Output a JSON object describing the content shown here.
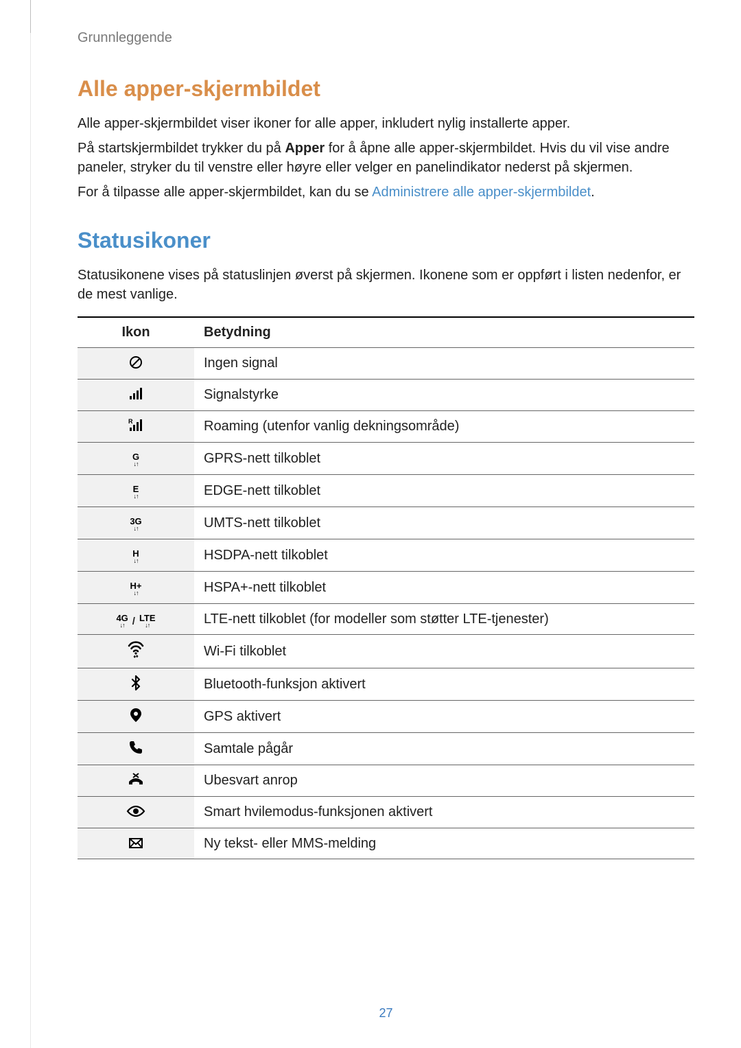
{
  "header": {
    "section": "Grunnleggende"
  },
  "s1": {
    "title": "Alle apper-skjermbildet",
    "p1": "Alle apper-skjermbildet viser ikoner for alle apper, inkludert nylig installerte apper.",
    "p2a": "På startskjermbildet trykker du på ",
    "p2b": "Apper",
    "p2c": " for å åpne alle apper-skjermbildet. Hvis du vil vise andre paneler, stryker du til venstre eller høyre eller velger en panelindikator nederst på skjermen.",
    "p3a": "For å tilpasse alle apper-skjermbildet, kan du se ",
    "p3link": "Administrere alle apper-skjermbildet",
    "p3b": "."
  },
  "s2": {
    "title": "Statusikoner",
    "p1": "Statusikonene vises på statuslinjen øverst på skjermen. Ikonene som er oppført i listen nedenfor, er de mest vanlige."
  },
  "table": {
    "col_icon": "Ikon",
    "col_meaning": "Betydning",
    "rows": [
      {
        "icon": "no-signal",
        "label": "",
        "text": "Ingen signal"
      },
      {
        "icon": "signal",
        "label": "",
        "text": "Signalstyrke"
      },
      {
        "icon": "roaming",
        "label": "R",
        "text": "Roaming (utenfor vanlig dekningsområde)"
      },
      {
        "icon": "net",
        "label": "G",
        "text": "GPRS-nett tilkoblet"
      },
      {
        "icon": "net",
        "label": "E",
        "text": "EDGE-nett tilkoblet"
      },
      {
        "icon": "net",
        "label": "3G",
        "text": "UMTS-nett tilkoblet"
      },
      {
        "icon": "net",
        "label": "H",
        "text": "HSDPA-nett tilkoblet"
      },
      {
        "icon": "net",
        "label": "H+",
        "text": "HSPA+-nett tilkoblet"
      },
      {
        "icon": "lte",
        "label": "4G",
        "label2": "LTE",
        "sep": " / ",
        "text": "LTE-nett tilkoblet (for modeller som støtter LTE-tjenester)"
      },
      {
        "icon": "wifi",
        "label": "",
        "text": "Wi-Fi tilkoblet"
      },
      {
        "icon": "bluetooth",
        "label": "",
        "text": "Bluetooth-funksjon aktivert"
      },
      {
        "icon": "gps",
        "label": "",
        "text": "GPS aktivert"
      },
      {
        "icon": "call",
        "label": "",
        "text": "Samtale pågår"
      },
      {
        "icon": "missed",
        "label": "",
        "text": "Ubesvart anrop"
      },
      {
        "icon": "eye",
        "label": "",
        "text": "Smart hvilemodus-funksjonen aktivert"
      },
      {
        "icon": "message",
        "label": "",
        "text": "Ny tekst- eller MMS-melding"
      }
    ]
  },
  "page_number": "27",
  "colors": {
    "heading_orange": "#d98e4a",
    "heading_blue": "#4a8fc9",
    "link": "#4a8fc9",
    "text": "#222222",
    "section_header": "#7a7a7a",
    "icon_bg": "#f1f1f1",
    "border": "#666666",
    "border_top": "#000000",
    "pagenum": "#3a7abf"
  }
}
